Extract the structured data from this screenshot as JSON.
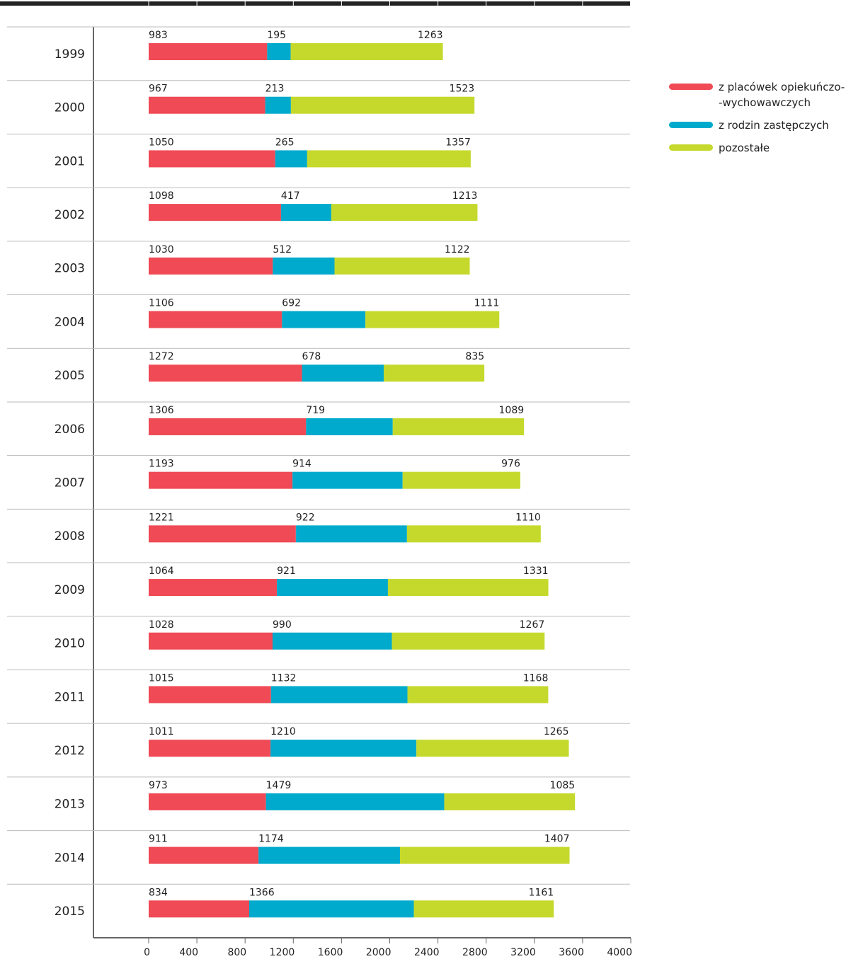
{
  "chart_data": {
    "type": "stacked_barh",
    "categories": [
      "1999",
      "2000",
      "2001",
      "2002",
      "2003",
      "2004",
      "2005",
      "2006",
      "2007",
      "2008",
      "2009",
      "2010",
      "2011",
      "2012",
      "2013",
      "2014",
      "2015"
    ],
    "series": [
      {
        "name": "z placówek opiekuńczo-\n-wychowawczych",
        "color": "#ef4a55",
        "values": [
          983,
          967,
          1050,
          1098,
          1030,
          1106,
          1272,
          1306,
          1193,
          1221,
          1064,
          1028,
          1015,
          1011,
          973,
          911,
          834
        ]
      },
      {
        "name": "z rodzin zastępczych",
        "color": "#00aacc",
        "values": [
          195,
          213,
          265,
          417,
          512,
          692,
          678,
          719,
          914,
          922,
          921,
          990,
          1132,
          1210,
          1479,
          1174,
          1366
        ]
      },
      {
        "name": "pozostałe",
        "color": "#c5d92d",
        "values": [
          1263,
          1523,
          1357,
          1213,
          1122,
          1111,
          835,
          1089,
          976,
          1110,
          1331,
          1267,
          1168,
          1265,
          1085,
          1407,
          1161
        ]
      }
    ],
    "xlim": [
      0,
      4000
    ],
    "xticks": [
      0,
      400,
      800,
      1200,
      1600,
      2000,
      2400,
      2800,
      3200,
      3600,
      4000
    ]
  }
}
